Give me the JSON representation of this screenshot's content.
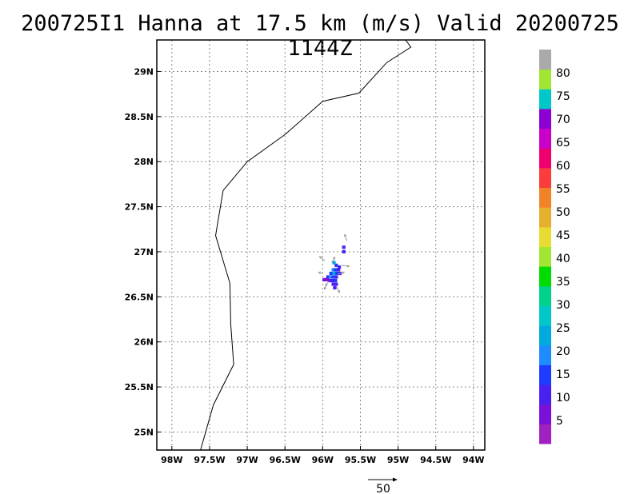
{
  "title": "200725I1 Hanna at 17.5 km (m/s) Valid 20200725 1144Z",
  "map": {
    "lon_range": [
      -98.2,
      -93.85
    ],
    "lat_range": [
      24.8,
      29.35
    ],
    "lon_ticks": [
      {
        "value": -98,
        "label": "98W"
      },
      {
        "value": -97.5,
        "label": "97.5W"
      },
      {
        "value": -97,
        "label": "97W"
      },
      {
        "value": -96.5,
        "label": "96.5W"
      },
      {
        "value": -96,
        "label": "96W"
      },
      {
        "value": -95.5,
        "label": "95.5W"
      },
      {
        "value": -95,
        "label": "95W"
      },
      {
        "value": -94.5,
        "label": "94.5W"
      },
      {
        "value": -94,
        "label": "94W"
      }
    ],
    "lat_ticks": [
      {
        "value": 25,
        "label": "25N"
      },
      {
        "value": 25.5,
        "label": "25.5N"
      },
      {
        "value": 26,
        "label": "26N"
      },
      {
        "value": 26.5,
        "label": "26.5N"
      },
      {
        "value": 27,
        "label": "27N"
      },
      {
        "value": 27.5,
        "label": "27.5N"
      },
      {
        "value": 28,
        "label": "28N"
      },
      {
        "value": 28.5,
        "label": "28.5N"
      },
      {
        "value": 29,
        "label": "29N"
      }
    ],
    "grid": true,
    "coastline": [
      [
        -97.62,
        24.8
      ],
      [
        -97.45,
        25.3
      ],
      [
        -97.18,
        25.75
      ],
      [
        -97.22,
        26.2
      ],
      [
        -97.23,
        26.65
      ],
      [
        -97.42,
        27.18
      ],
      [
        -97.32,
        27.68
      ],
      [
        -97.0,
        28.0
      ],
      [
        -96.5,
        28.3
      ],
      [
        -96.0,
        28.67
      ],
      [
        -95.52,
        28.76
      ],
      [
        -95.15,
        29.1
      ],
      [
        -94.83,
        29.27
      ],
      [
        -94.9,
        29.35
      ]
    ],
    "wind_cells": [
      {
        "lon": -95.72,
        "lat": 27.0,
        "speed": 10
      },
      {
        "lon": -95.72,
        "lat": 27.05,
        "speed": 12
      },
      {
        "lon": -95.85,
        "lat": 26.88,
        "speed": 22
      },
      {
        "lon": -95.82,
        "lat": 26.85,
        "speed": 13
      },
      {
        "lon": -95.78,
        "lat": 26.83,
        "speed": 10
      },
      {
        "lon": -95.86,
        "lat": 26.8,
        "speed": 20
      },
      {
        "lon": -95.83,
        "lat": 26.8,
        "speed": 14
      },
      {
        "lon": -95.79,
        "lat": 26.8,
        "speed": 11
      },
      {
        "lon": -95.89,
        "lat": 26.76,
        "speed": 16
      },
      {
        "lon": -95.85,
        "lat": 26.76,
        "speed": 22
      },
      {
        "lon": -95.81,
        "lat": 26.76,
        "speed": 13
      },
      {
        "lon": -95.77,
        "lat": 26.76,
        "speed": 10
      },
      {
        "lon": -95.93,
        "lat": 26.72,
        "speed": 12
      },
      {
        "lon": -95.9,
        "lat": 26.72,
        "speed": 18
      },
      {
        "lon": -95.86,
        "lat": 26.72,
        "speed": 14
      },
      {
        "lon": -95.82,
        "lat": 26.72,
        "speed": 11
      },
      {
        "lon": -95.98,
        "lat": 26.69,
        "speed": 6
      },
      {
        "lon": -95.94,
        "lat": 26.69,
        "speed": 8
      },
      {
        "lon": -95.9,
        "lat": 26.68,
        "speed": 12
      },
      {
        "lon": -95.86,
        "lat": 26.68,
        "speed": 10
      },
      {
        "lon": -95.83,
        "lat": 26.68,
        "speed": 16
      },
      {
        "lon": -95.86,
        "lat": 26.64,
        "speed": 12
      },
      {
        "lon": -95.82,
        "lat": 26.64,
        "speed": 10
      },
      {
        "lon": -95.84,
        "lat": 26.6,
        "speed": 11
      }
    ],
    "wind_vectors": [
      {
        "lon": -95.68,
        "lat": 27.12,
        "u": -4,
        "v": 12
      },
      {
        "lon": -95.97,
        "lat": 26.9,
        "u": -10,
        "v": 8
      },
      {
        "lon": -95.88,
        "lat": 26.88,
        "u": 6,
        "v": 10
      },
      {
        "lon": -95.75,
        "lat": 26.85,
        "u": 14,
        "v": -2
      },
      {
        "lon": -96.0,
        "lat": 26.76,
        "u": -8,
        "v": 2
      },
      {
        "lon": -95.8,
        "lat": 26.75,
        "u": 12,
        "v": 4
      },
      {
        "lon": -95.92,
        "lat": 26.67,
        "u": -6,
        "v": -8
      },
      {
        "lon": -95.82,
        "lat": 26.62,
        "u": 6,
        "v": -12
      },
      {
        "lon": -95.95,
        "lat": 26.63,
        "u": -4,
        "v": -8
      }
    ]
  },
  "colorbar": {
    "colors": [
      "#a020c0",
      "#7b10d8",
      "#4a20f0",
      "#1e3cff",
      "#1e8cff",
      "#00aadc",
      "#00c8c8",
      "#00d28c",
      "#00dc00",
      "#a0e632",
      "#e6dc32",
      "#e6af2d",
      "#f08228",
      "#fa3c3c",
      "#f0006e",
      "#c800c8",
      "#8c00d2",
      "#00c8c8",
      "#a0e632",
      "#aaaaaa"
    ],
    "labels": [
      "5",
      "10",
      "15",
      "20",
      "25",
      "30",
      "35",
      "40",
      "45",
      "50",
      "55",
      "60",
      "65",
      "70",
      "75",
      "80"
    ],
    "max": 85
  },
  "reference_vector": {
    "label": "50",
    "value": 50
  }
}
